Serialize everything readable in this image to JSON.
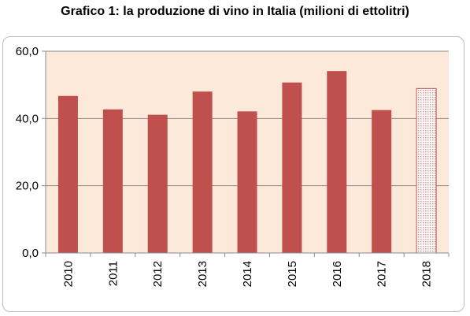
{
  "chart_data": {
    "type": "bar",
    "title": "Grafico 1: la produzione di vino in Italia (milioni di ettolitri)",
    "xlabel": "",
    "ylabel": "",
    "categories": [
      "2010",
      "2011",
      "2012",
      "2013",
      "2014",
      "2015",
      "2016",
      "2017",
      "2018"
    ],
    "values": [
      46.7,
      42.7,
      41.1,
      48.0,
      42.1,
      50.7,
      54.1,
      42.5,
      48.9
    ],
    "estimated": [
      false,
      false,
      false,
      false,
      false,
      false,
      false,
      false,
      true
    ],
    "ylim": [
      0,
      60
    ],
    "yticks": [
      "0,0",
      "20,0",
      "40,0",
      "60,0"
    ],
    "ytick_values": [
      0,
      20,
      40,
      60
    ],
    "grid": true,
    "legend": "none",
    "colors": {
      "bar": "#c0504d",
      "bar_estimated": "#f2c7c6",
      "plot_background": "#fde9d9",
      "gridline": "#8c8c8c"
    }
  }
}
